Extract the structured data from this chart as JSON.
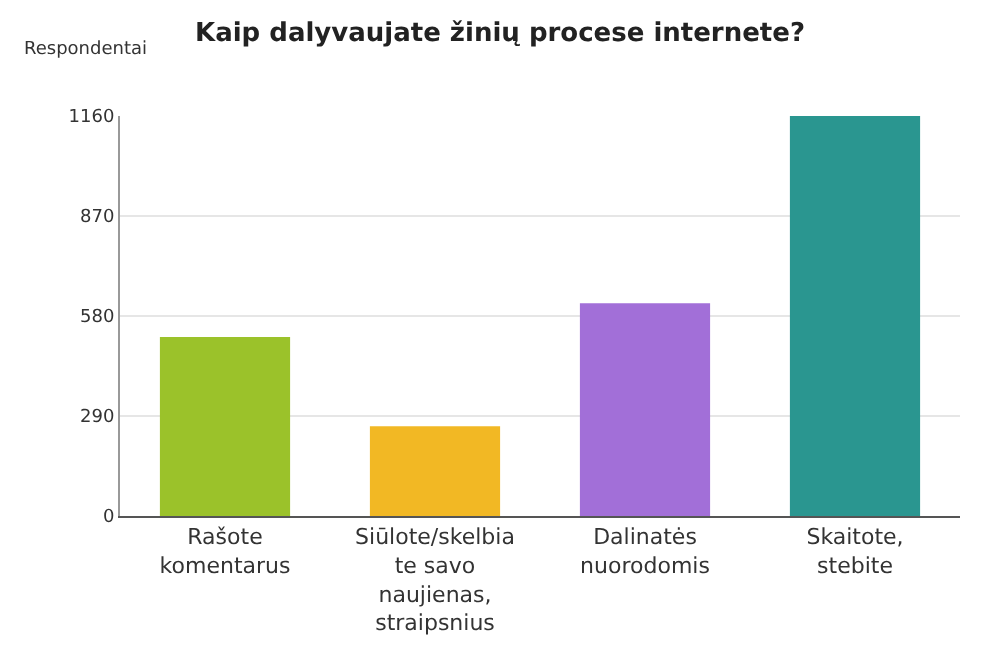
{
  "chart_data": {
    "type": "bar",
    "title": "Kaip dalyvaujate žinių procese internete?",
    "ylabel": "Respondentai",
    "categories": [
      "Rašote\nkomentarus",
      "Siūlote/skelbia\nte savo\nnaujienas,\nstraipsnius",
      "Dalinatės\nnuorodomis",
      "Skaitote,\nstebite"
    ],
    "values": [
      519,
      260,
      617,
      1160
    ],
    "colors": [
      "#9bc22a",
      "#f2b824",
      "#a26fd8",
      "#2a9690"
    ],
    "ylim": [
      0,
      1160
    ],
    "yticks": [
      0,
      290,
      580,
      870,
      1160
    ],
    "grid": "y"
  }
}
